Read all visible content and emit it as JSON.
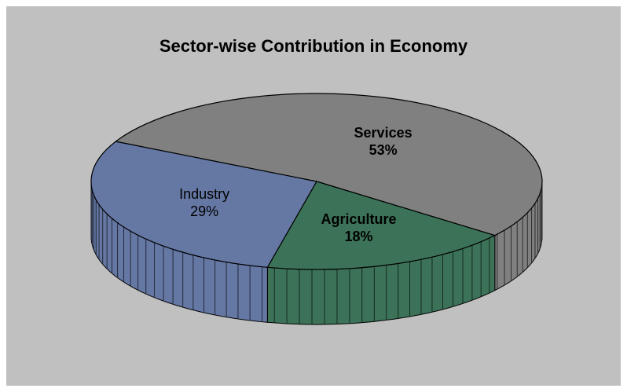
{
  "chart_data": {
    "type": "pie",
    "title": "Sector-wise Contribution in Economy",
    "slices": [
      {
        "label": "Services",
        "value": 53,
        "value_label": "53%",
        "color": "#808080",
        "label_bold": true
      },
      {
        "label": "Agriculture",
        "value": 18,
        "value_label": "18%",
        "color": "#3c7358",
        "label_bold": true
      },
      {
        "label": "Industry",
        "value": 29,
        "value_label": "29%",
        "color": "#6577a3",
        "label_bold": false
      }
    ]
  },
  "colors": {
    "background": "#c0c0c0",
    "outline": "#000000"
  }
}
